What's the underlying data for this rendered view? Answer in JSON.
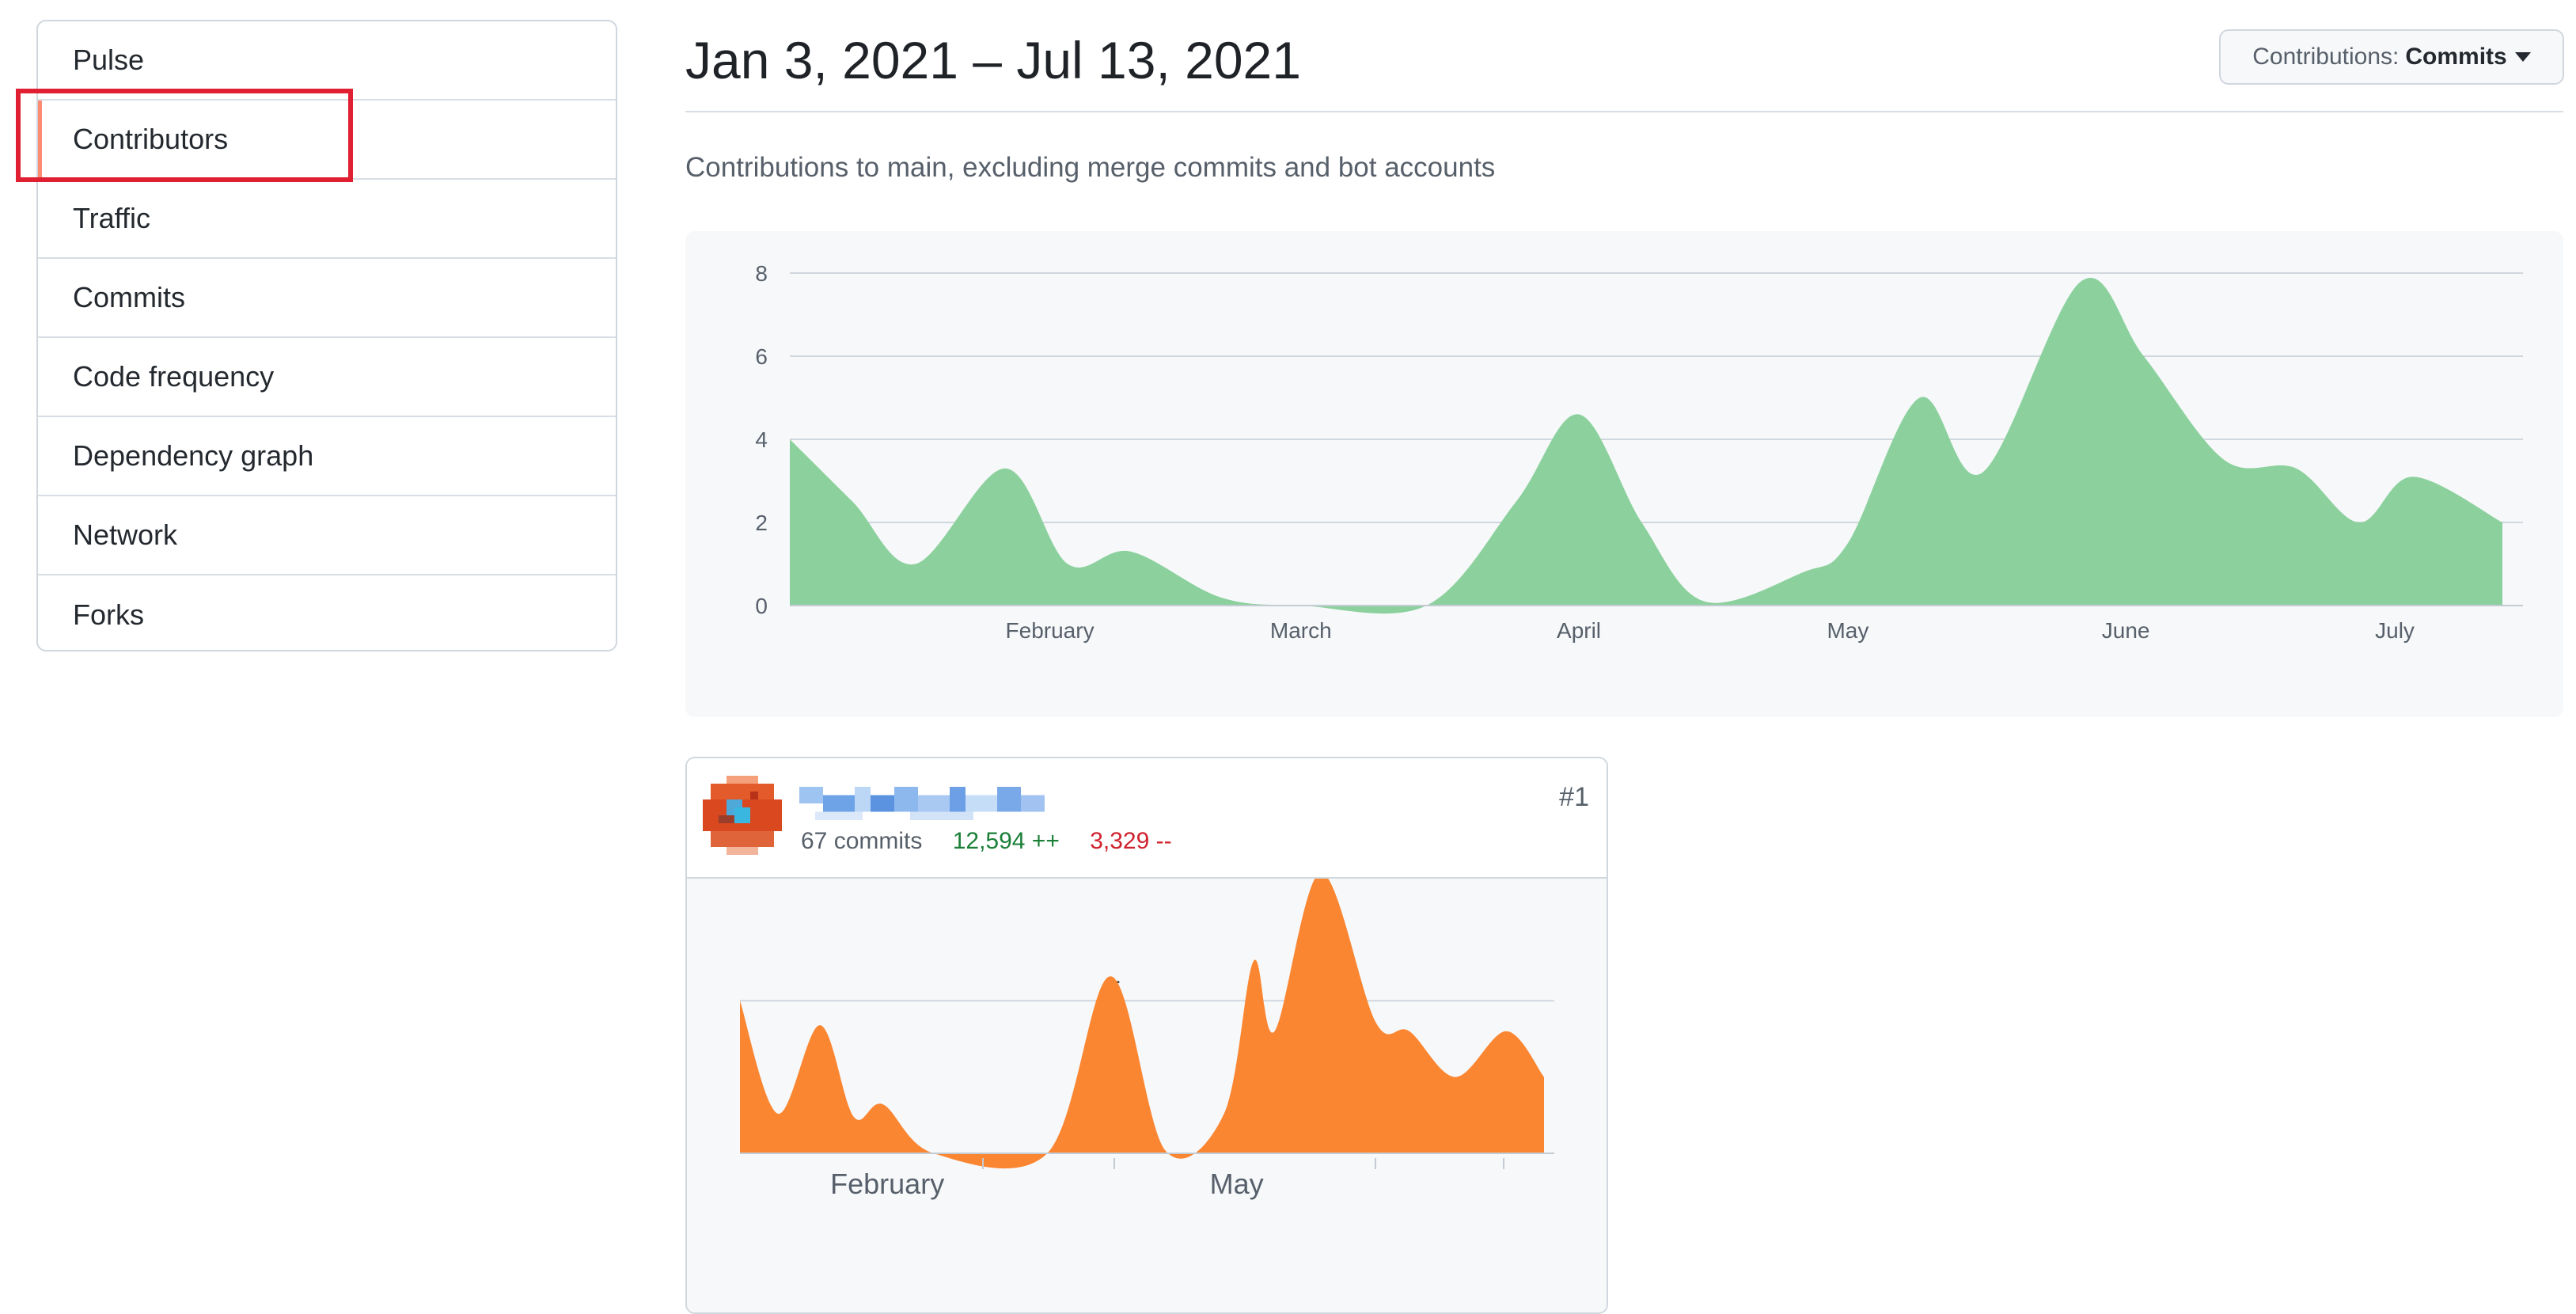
{
  "sidebar": {
    "items": [
      {
        "label": "Pulse"
      },
      {
        "label": "Contributors",
        "selected": true
      },
      {
        "label": "Traffic"
      },
      {
        "label": "Commits"
      },
      {
        "label": "Code frequency"
      },
      {
        "label": "Dependency graph"
      },
      {
        "label": "Network"
      },
      {
        "label": "Forks"
      }
    ]
  },
  "header": {
    "range_title": "Jan 3, 2021 – Jul 13, 2021",
    "contributions_label": "Contributions:",
    "contributions_value": "Commits",
    "subtitle": "Contributions to main, excluding merge commits and bot accounts"
  },
  "colors": {
    "main_area": "#8cd19d",
    "contributor_area": "#fb8632",
    "selected_indicator": "#fd8c73",
    "highlight_box": "#e02032",
    "additions": "#1a7f37",
    "deletions": "#cf222e"
  },
  "chart_data": [
    {
      "type": "area",
      "title": "",
      "xlabel": "",
      "ylabel": "",
      "ylim": [
        0,
        8
      ],
      "yticks": [
        0,
        2,
        4,
        6,
        8
      ],
      "xlim": [
        "2021-01-03",
        "2021-07-13"
      ],
      "xtick_labels": [
        {
          "label": "February",
          "date": "2021-02-01"
        },
        {
          "label": "March",
          "date": "2021-03-01"
        },
        {
          "label": "April",
          "date": "2021-04-01"
        },
        {
          "label": "May",
          "date": "2021-05-01"
        },
        {
          "label": "June",
          "date": "2021-06-01"
        },
        {
          "label": "July",
          "date": "2021-07-01"
        }
      ],
      "grid": true,
      "series": [
        {
          "values": [
            {
              "x": "2021-01-03",
              "y": 4
            },
            {
              "x": "2021-01-10",
              "y": 2.5
            },
            {
              "x": "2021-01-17",
              "y": 1
            },
            {
              "x": "2021-01-27",
              "y": 3.3
            },
            {
              "x": "2021-02-03",
              "y": 1
            },
            {
              "x": "2021-02-10",
              "y": 1.3
            },
            {
              "x": "2021-02-20",
              "y": 0.2
            },
            {
              "x": "2021-03-01",
              "y": 0
            },
            {
              "x": "2021-03-15",
              "y": 0
            },
            {
              "x": "2021-03-25",
              "y": 2.5
            },
            {
              "x": "2021-04-01",
              "y": 4.6
            },
            {
              "x": "2021-04-08",
              "y": 2
            },
            {
              "x": "2021-04-15",
              "y": 0.1
            },
            {
              "x": "2021-04-26",
              "y": 0.8
            },
            {
              "x": "2021-05-01",
              "y": 1.5
            },
            {
              "x": "2021-05-09",
              "y": 5
            },
            {
              "x": "2021-05-16",
              "y": 3.2
            },
            {
              "x": "2021-05-27",
              "y": 7.8
            },
            {
              "x": "2021-06-03",
              "y": 6
            },
            {
              "x": "2021-06-12",
              "y": 3.5
            },
            {
              "x": "2021-06-20",
              "y": 3.3
            },
            {
              "x": "2021-06-27",
              "y": 2
            },
            {
              "x": "2021-07-03",
              "y": 3.1
            },
            {
              "x": "2021-07-13",
              "y": 2
            }
          ]
        }
      ]
    },
    {
      "type": "area",
      "title": "",
      "xlabel": "",
      "ylabel": "",
      "ylim": [
        0,
        9
      ],
      "yticks": [
        5
      ],
      "xlim": [
        "2021-01-03",
        "2021-07-13"
      ],
      "xtick_labels": [
        {
          "label": "February",
          "date": "2021-02-07"
        },
        {
          "label": "May",
          "date": "2021-05-01"
        }
      ],
      "grid": true,
      "series": [
        {
          "values": [
            {
              "x": "2021-01-03",
              "y": 5
            },
            {
              "x": "2021-01-12",
              "y": 1.3
            },
            {
              "x": "2021-01-22",
              "y": 4.2
            },
            {
              "x": "2021-01-30",
              "y": 1.2
            },
            {
              "x": "2021-02-06",
              "y": 1.6
            },
            {
              "x": "2021-02-18",
              "y": 0
            },
            {
              "x": "2021-03-17",
              "y": 0
            },
            {
              "x": "2021-04-01",
              "y": 5.8
            },
            {
              "x": "2021-04-14",
              "y": 0.1
            },
            {
              "x": "2021-04-28",
              "y": 1.3
            },
            {
              "x": "2021-05-05",
              "y": 6.3
            },
            {
              "x": "2021-05-10",
              "y": 4
            },
            {
              "x": "2021-05-21",
              "y": 9.2
            },
            {
              "x": "2021-06-03",
              "y": 4.3
            },
            {
              "x": "2021-06-11",
              "y": 4
            },
            {
              "x": "2021-06-22",
              "y": 2.5
            },
            {
              "x": "2021-07-04",
              "y": 4
            },
            {
              "x": "2021-07-13",
              "y": 2.5
            }
          ]
        }
      ]
    }
  ],
  "contributor": {
    "rank": "#1",
    "commits": "67 commits",
    "additions": "12,594 ++",
    "deletions": "3,329 --"
  }
}
